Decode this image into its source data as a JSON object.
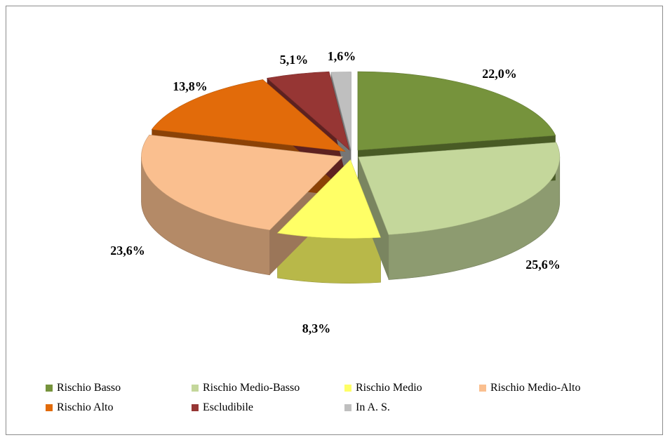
{
  "chart_data": {
    "type": "pie",
    "categories": [
      "Rischio Basso",
      "Rischio Medio-Basso",
      "Rischio Medio",
      "Rischio Medio-Alto",
      "Rischio Alto",
      "Escludibile",
      "In A. S."
    ],
    "values": [
      22.0,
      25.6,
      8.3,
      23.6,
      13.8,
      5.1,
      1.6
    ],
    "data_labels": [
      "22,0%",
      "25,6%",
      "8,3%",
      "23,6%",
      "13,8%",
      "5,1%",
      "1,6%"
    ],
    "colors": [
      "#76933C",
      "#C4D79B",
      "#FFFF66",
      "#FABF8F",
      "#E26B0A",
      "#963634",
      "#BFBFBF"
    ],
    "style": "3d-exploded",
    "legend_position": "bottom"
  }
}
